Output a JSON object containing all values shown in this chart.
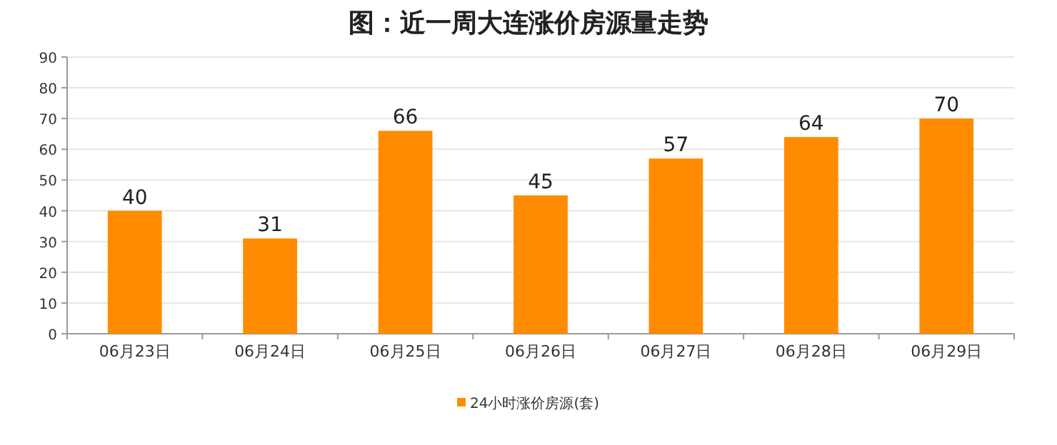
{
  "chart_data": {
    "type": "bar",
    "title": "图：近一周大连涨价房源量走势",
    "categories": [
      "06月23日",
      "06月24日",
      "06月25日",
      "06月26日",
      "06月27日",
      "06月28日",
      "06月29日"
    ],
    "series": [
      {
        "name": "24小时涨价房源(套)",
        "color": "#ff8c00",
        "values": [
          40,
          31,
          66,
          45,
          57,
          64,
          70
        ]
      }
    ],
    "ylim": [
      0,
      90
    ],
    "yticks": [
      0,
      10,
      20,
      30,
      40,
      50,
      60,
      70,
      80,
      90
    ],
    "grid": "y",
    "legend": "bottom",
    "data_labels": true
  }
}
